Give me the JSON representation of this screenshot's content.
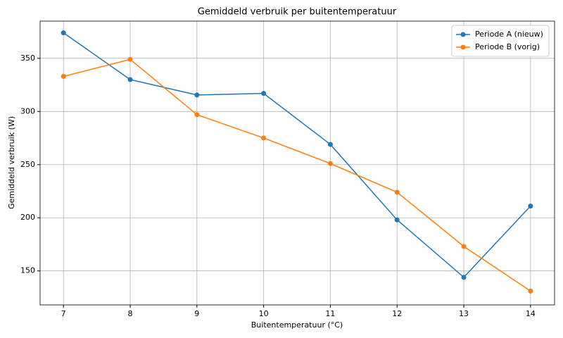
{
  "chart_data": {
    "type": "line",
    "title": "Gemiddeld verbruik per buitentemperatuur",
    "x_label": "Buitentemperatuur (°C)",
    "y_label": "Gemiddeld verbruik (W)",
    "x": [
      7,
      8,
      9,
      10,
      11,
      12,
      13,
      14
    ],
    "series": [
      {
        "name": "Periode A (nieuw)",
        "color": "#1f77b4",
        "values": [
          374,
          330,
          315.5,
          317,
          269,
          198,
          144,
          211
        ]
      },
      {
        "name": "Periode B (vorig)",
        "color": "#ff7f0e",
        "values": [
          333,
          349,
          297,
          275,
          251,
          224,
          173,
          131
        ]
      }
    ],
    "xlim": [
      6.65,
      14.36
    ],
    "xticks": [
      7,
      8,
      9,
      10,
      11,
      12,
      13,
      14
    ],
    "ylim": [
      118,
      385
    ],
    "yticks": [
      150,
      200,
      250,
      300,
      350
    ],
    "grid": true,
    "legend": "upper right"
  }
}
